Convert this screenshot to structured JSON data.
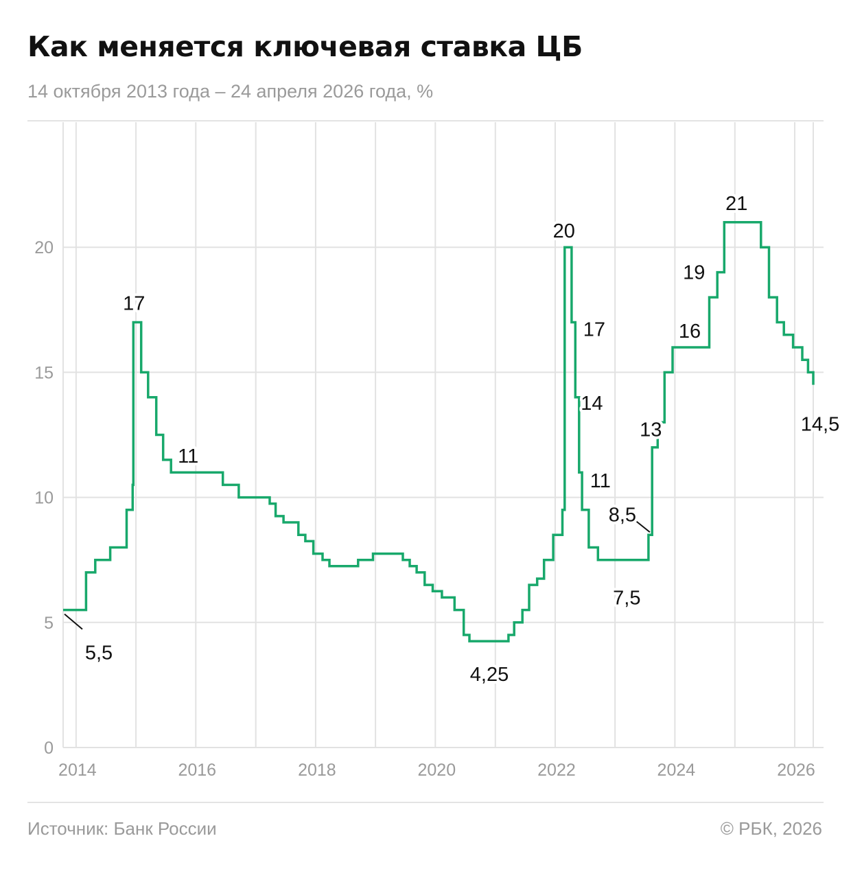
{
  "header": {
    "title": "Как меняется ключевая ставка ЦБ",
    "subtitle": "14 октября 2013 года – 24 апреля 2026 года, %"
  },
  "footer": {
    "source": "Источник: Банк России",
    "copyright": "© РБК, 2026"
  },
  "colors": {
    "line": "#18a86b",
    "grid": "#e2e2e2",
    "axis_text": "#9a9a9a",
    "label_text": "#111111"
  },
  "chart_data": {
    "type": "line",
    "step": true,
    "title": "Как меняется ключевая ставка ЦБ",
    "subtitle": "14 октября 2013 года – 24 апреля 2026 года, %",
    "xlabel": "",
    "ylabel": "",
    "xlim": [
      "2013-10-14",
      "2026-04-24"
    ],
    "ylim": [
      0,
      25
    ],
    "y_ticks": [
      0,
      5,
      10,
      15,
      20
    ],
    "x_ticks": [
      "2014",
      "2016",
      "2018",
      "2020",
      "2022",
      "2024",
      "2026"
    ],
    "grid": true,
    "series": [
      {
        "x": [
          "2013-10-14",
          "2014-03-03",
          "2014-04-28",
          "2014-07-28",
          "2014-11-05",
          "2014-12-12",
          "2014-12-16",
          "2015-02-02",
          "2015-03-16",
          "2015-05-05",
          "2015-06-16",
          "2015-08-03",
          "2016-06-14",
          "2016-09-19",
          "2017-03-27",
          "2017-05-02",
          "2017-06-19",
          "2017-09-18",
          "2017-10-30",
          "2017-12-18",
          "2018-02-12",
          "2018-03-26",
          "2018-09-17",
          "2018-12-17",
          "2019-06-17",
          "2019-07-29",
          "2019-09-09",
          "2019-10-28",
          "2019-12-16",
          "2020-02-10",
          "2020-04-27",
          "2020-06-22",
          "2020-07-27",
          "2021-03-22",
          "2021-04-26",
          "2021-06-15",
          "2021-07-26",
          "2021-09-13",
          "2021-10-25",
          "2021-12-20",
          "2022-02-14",
          "2022-02-28",
          "2022-04-11",
          "2022-05-04",
          "2022-05-27",
          "2022-06-14",
          "2022-07-25",
          "2022-09-19",
          "2023-07-24",
          "2023-08-15",
          "2023-09-18",
          "2023-10-30",
          "2023-12-18",
          "2024-07-29",
          "2024-09-16",
          "2024-10-28",
          "2025-06-09",
          "2025-07-28",
          "2025-09-15",
          "2025-10-27",
          "2025-12-22",
          "2026-02-16",
          "2026-03-23",
          "2026-04-24"
        ],
        "y": [
          5.5,
          7,
          7.5,
          8,
          9.5,
          10.5,
          17,
          15,
          14,
          12.5,
          11.5,
          11,
          10.5,
          10,
          9.75,
          9.25,
          9,
          8.5,
          8.25,
          7.75,
          7.5,
          7.25,
          7.5,
          7.75,
          7.5,
          7.25,
          7,
          6.5,
          6.25,
          6,
          5.5,
          4.5,
          4.25,
          4.5,
          5,
          5.5,
          6.5,
          6.75,
          7.5,
          8.5,
          9.5,
          20,
          17,
          14,
          11,
          9.5,
          8,
          7.5,
          8.5,
          12,
          13,
          15,
          16,
          18,
          19,
          21,
          20,
          18,
          17,
          16.5,
          16,
          15.5,
          15,
          14.5
        ]
      }
    ],
    "annotations": [
      {
        "text": "5,5",
        "x": "2013-10-14",
        "y": 5.5
      },
      {
        "text": "17",
        "x": "2014-12-16",
        "y": 17
      },
      {
        "text": "11",
        "x": "2015-08-03",
        "y": 11
      },
      {
        "text": "4,25",
        "x": "2020-07-27",
        "y": 4.25
      },
      {
        "text": "20",
        "x": "2022-02-28",
        "y": 20
      },
      {
        "text": "17",
        "x": "2022-04-11",
        "y": 17
      },
      {
        "text": "14",
        "x": "2022-05-04",
        "y": 14
      },
      {
        "text": "11",
        "x": "2022-05-27",
        "y": 11
      },
      {
        "text": "7,5",
        "x": "2022-09-19",
        "y": 7.5
      },
      {
        "text": "8,5",
        "x": "2023-07-24",
        "y": 8.5
      },
      {
        "text": "13",
        "x": "2023-09-18",
        "y": 13
      },
      {
        "text": "16",
        "x": "2023-12-18",
        "y": 16
      },
      {
        "text": "19",
        "x": "2024-09-16",
        "y": 19
      },
      {
        "text": "21",
        "x": "2024-10-28",
        "y": 21
      },
      {
        "text": "14,5",
        "x": "2026-04-24",
        "y": 14.5
      }
    ]
  }
}
